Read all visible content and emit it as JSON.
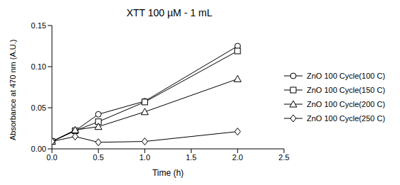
{
  "chart_data": {
    "type": "line",
    "title": "XTT 100 µM - 1 mL",
    "x_label": "Time (h)",
    "y_label": "Absorbance at 470 nm (A.U.)",
    "x": [
      0,
      0.25,
      0.5,
      1,
      2
    ],
    "series": [
      {
        "name": "ZnO 100 Cycle(100 C)",
        "color": "#000000",
        "marker": "circle",
        "values": [
          0.009,
          0.022,
          0.042,
          0.058,
          0.125
        ]
      },
      {
        "name": "ZnO 100 Cycle(150 C)",
        "color": "#000000",
        "marker": "square",
        "values": [
          0.009,
          0.022,
          0.033,
          0.057,
          0.119
        ]
      },
      {
        "name": "ZnO 100 Cycle(200 C)",
        "color": "#000000",
        "marker": "triangle",
        "values": [
          0.009,
          0.023,
          0.027,
          0.045,
          0.085
        ]
      },
      {
        "name": "ZnO 100 Cycle(250 C)",
        "color": "#000000",
        "marker": "diamond",
        "values": [
          0.009,
          0.015,
          0.008,
          0.009,
          0.021
        ]
      }
    ],
    "xlim": [
      0,
      2.5
    ],
    "xticks": [
      {
        "value": 0,
        "label": "0.0"
      },
      0.5,
      {
        "value": 1,
        "label": "1.0"
      },
      1.5,
      {
        "value": 2,
        "label": "2.0"
      },
      2.5
    ],
    "ylim": [
      0,
      0.15
    ],
    "yticks": [
      {
        "value": 0,
        "label": "0.00"
      },
      {
        "value": 0.05,
        "label": "0.05"
      },
      {
        "value": 0.1,
        "label": "0.10"
      },
      {
        "value": 0.15,
        "label": "0.15"
      }
    ],
    "legend": "right",
    "grid": false
  }
}
